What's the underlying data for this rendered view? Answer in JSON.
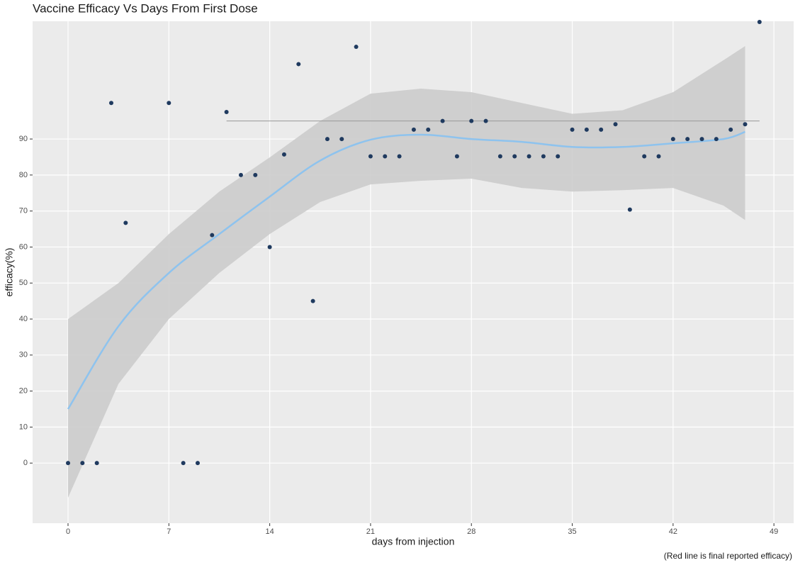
{
  "chart_data": {
    "type": "scatter",
    "title": "Vaccine Efficacy Vs Days From First Dose",
    "x_label": "days from injection",
    "y_label": "efficacy(%)",
    "caption": "(Red line is final reported efficacy)",
    "xlim": [
      -2.46,
      50.37
    ],
    "ylim": [
      -16.7,
      122.7
    ],
    "xticks": [
      0,
      7,
      14,
      21,
      28,
      35,
      42,
      49
    ],
    "yticks": [
      0,
      10,
      20,
      30,
      40,
      50,
      60,
      70,
      80,
      90
    ],
    "grid": true,
    "points": {
      "color": "#1f3a5f",
      "x": [
        0,
        1,
        2,
        3,
        4,
        7,
        8,
        9,
        10,
        11,
        12,
        13,
        14,
        15,
        16,
        17,
        18,
        19,
        20,
        21,
        22,
        23,
        24,
        25,
        26,
        27,
        28,
        29,
        30,
        31,
        32,
        33,
        34,
        35,
        36,
        37,
        38,
        39,
        40,
        41,
        42,
        43,
        44,
        45,
        46,
        47,
        48
      ],
      "values": [
        0,
        0,
        0,
        100,
        66.7,
        100,
        0,
        0,
        63.3,
        97.5,
        80,
        80,
        60,
        85.7,
        110.8,
        45,
        90,
        90,
        115.6,
        85.2,
        85.2,
        85.2,
        92.6,
        92.6,
        95,
        85.2,
        95,
        95,
        85.2,
        85.2,
        85.2,
        85.2,
        85.2,
        92.6,
        92.6,
        92.6,
        94.1,
        70.4,
        85.2,
        85.2,
        90,
        90,
        90,
        90,
        92.6,
        94.1,
        122.5
      ]
    },
    "smooth": {
      "color": "#8ec3ee",
      "band_color": "#cccccc",
      "x": [
        0,
        3.5,
        7,
        10.5,
        14,
        17.5,
        21,
        24.5,
        28,
        31.5,
        35,
        38.5,
        42,
        45.5,
        47
      ],
      "values": [
        15,
        38,
        52.8,
        63.6,
        74,
        84,
        89.8,
        91.2,
        90,
        89.2,
        87.8,
        87.8,
        88.8,
        90,
        92
      ],
      "lower": [
        -9.6,
        22,
        40,
        52.8,
        63.6,
        72.5,
        77.4,
        78.4,
        79,
        76.4,
        75.4,
        75.8,
        76.4,
        71.5,
        67.5
      ],
      "upper": [
        40,
        50,
        63.6,
        75.4,
        84.9,
        95,
        102.6,
        104,
        103,
        100,
        97,
        98,
        103,
        111.9,
        115.8
      ]
    },
    "reference_line": {
      "value": 95,
      "x": [
        11,
        48
      ],
      "color": "#999999"
    }
  }
}
